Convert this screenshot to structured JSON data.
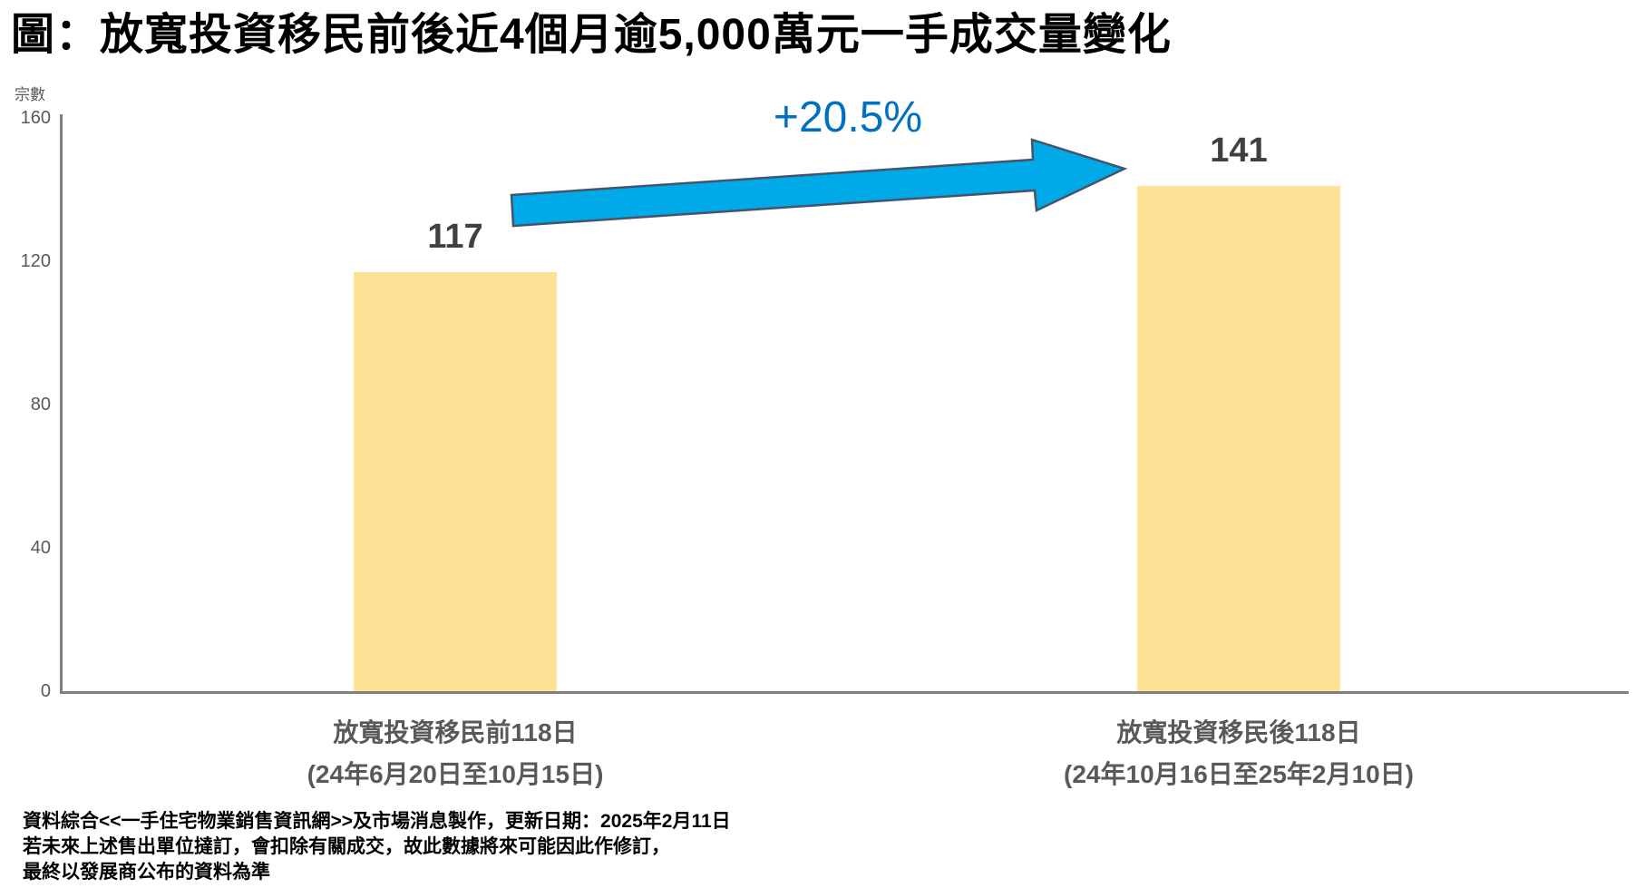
{
  "chart_data": {
    "type": "bar",
    "title": "圖：放寬投資移民前後近4個月逾5,000萬元一手成交量變化",
    "ylabel": "宗數",
    "xlabel": "",
    "ylim": [
      0,
      160
    ],
    "yticks": [
      0,
      40,
      80,
      120,
      160
    ],
    "grid": false,
    "legend": false,
    "categories": [
      "放寬投資移民前118日",
      "放寬投資移民後118日"
    ],
    "category_date_ranges": [
      "(24年6月20日至10月15日)",
      "(24年10月16日至25年2月10日)"
    ],
    "values": [
      117,
      141
    ],
    "change_annotation": "+20.5%"
  },
  "colors": {
    "bar_fill": "#FDE395",
    "arrow_fill": "#00A9E8",
    "arrow_stroke": "#44546A",
    "annotation_text": "#0070C0",
    "axis_line": "#808080",
    "tick_text": "#595959",
    "category_text": "#595959",
    "value_label_text": "#404040",
    "title_text": "#000000",
    "footer_text": "#000000"
  },
  "footer": {
    "lines": [
      "資料綜合<<一手住宅物業銷售資訊網>>及市場消息製作，更新日期：2025年2月11日",
      "若未來上述售出單位撻訂，會扣除有關成交，故此數據將來可能因此作修訂，",
      "最終以發展商公布的資料為準"
    ]
  }
}
